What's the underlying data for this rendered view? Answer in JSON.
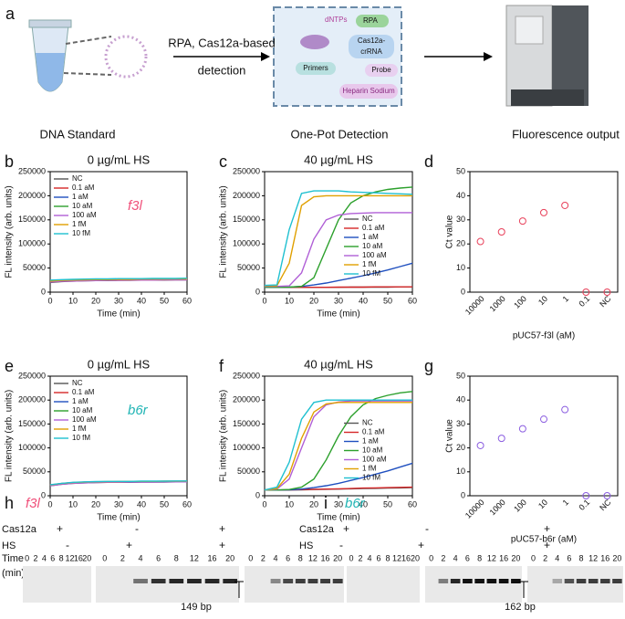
{
  "schematic": {
    "panel": "a",
    "arrow_label": [
      "RPA, Cas12a-based",
      "detection"
    ],
    "box_items": [
      "dNTPs",
      "RPA",
      "Cas12a-",
      "crRNA",
      "Primers",
      "Probe",
      "Heparin Sodium"
    ],
    "captions": [
      "DNA Standard",
      "One-Pot Detection",
      "Fluorescence output"
    ]
  },
  "chart_data": [
    {
      "type": "line",
      "panel": "b",
      "title": "0 µg/mL HS",
      "annotation": "f3l",
      "annotation_color": "#f0507a",
      "x_label": "Time (min)",
      "y_label": "FL intensity (arb. units)",
      "legend": "upper left",
      "x": [
        0,
        5,
        10,
        15,
        20,
        25,
        30,
        35,
        40,
        45,
        50,
        55,
        60
      ],
      "xlim": [
        0,
        60
      ],
      "xticks": [
        0,
        10,
        20,
        30,
        40,
        50,
        60
      ],
      "ylim": [
        0,
        250000
      ],
      "yticks": [
        0,
        50000,
        100000,
        150000,
        200000,
        250000
      ],
      "series": [
        {
          "name": "NC",
          "color": "#555555",
          "values": [
            20000,
            22000,
            23000,
            23500,
            24000,
            24000,
            24500,
            24500,
            25000,
            25000,
            25000,
            25500,
            25500
          ]
        },
        {
          "name": "0.1 aM",
          "color": "#d62728",
          "values": [
            23000,
            24000,
            24500,
            25000,
            25000,
            25500,
            25500,
            26000,
            26000,
            26000,
            26500,
            26500,
            26500
          ]
        },
        {
          "name": "1 aM",
          "color": "#1f4fbf",
          "values": [
            24000,
            25000,
            25500,
            26000,
            26000,
            26500,
            26500,
            27000,
            27000,
            27000,
            27500,
            27500,
            27500
          ]
        },
        {
          "name": "10 aM",
          "color": "#2ca02c",
          "values": [
            22000,
            23500,
            24000,
            24500,
            25000,
            25000,
            25500,
            25500,
            26000,
            26000,
            26000,
            26500,
            26500
          ]
        },
        {
          "name": "100 aM",
          "color": "#b05fd6",
          "values": [
            21000,
            22500,
            23000,
            23500,
            24000,
            24500,
            24500,
            25000,
            25000,
            25000,
            25500,
            25500,
            25500
          ]
        },
        {
          "name": "1 fM",
          "color": "#e0a000",
          "values": [
            23000,
            24500,
            25000,
            25500,
            26000,
            26000,
            26500,
            26500,
            27000,
            27000,
            27000,
            27500,
            27500
          ]
        },
        {
          "name": "10 fM",
          "color": "#1fc0d0",
          "values": [
            25000,
            26000,
            26500,
            27000,
            27500,
            27500,
            28000,
            28000,
            28000,
            28500,
            28500,
            28500,
            29000
          ]
        }
      ]
    },
    {
      "type": "line",
      "panel": "c",
      "title": "40 µg/mL HS",
      "x_label": "Time (min)",
      "y_label": "FL intensity (arb. units)",
      "legend": "center right",
      "x": [
        0,
        5,
        10,
        15,
        20,
        25,
        30,
        35,
        40,
        45,
        50,
        55,
        60
      ],
      "xlim": [
        0,
        60
      ],
      "xticks": [
        0,
        10,
        20,
        30,
        40,
        50,
        60
      ],
      "ylim": [
        0,
        250000
      ],
      "yticks": [
        0,
        50000,
        100000,
        150000,
        200000,
        250000
      ],
      "series": [
        {
          "name": "NC",
          "color": "#555555",
          "values": [
            10000,
            10000,
            10000,
            10000,
            10000,
            10000,
            10000,
            10500,
            10500,
            10500,
            10500,
            11000,
            11000
          ]
        },
        {
          "name": "0.1 aM",
          "color": "#d62728",
          "values": [
            10000,
            10000,
            10000,
            10000,
            10000,
            10000,
            10500,
            10500,
            10500,
            11000,
            11000,
            11000,
            11000
          ]
        },
        {
          "name": "1 aM",
          "color": "#1f4fbf",
          "values": [
            10000,
            10000,
            10500,
            12000,
            15000,
            19000,
            24000,
            29000,
            34000,
            40000,
            46000,
            53000,
            60000
          ]
        },
        {
          "name": "10 aM",
          "color": "#2ca02c",
          "values": [
            10000,
            10000,
            10500,
            12000,
            30000,
            90000,
            150000,
            185000,
            200000,
            208000,
            213000,
            216000,
            218000
          ]
        },
        {
          "name": "100 aM",
          "color": "#b05fd6",
          "values": [
            12000,
            12000,
            13000,
            40000,
            110000,
            150000,
            160000,
            163000,
            164000,
            165000,
            165000,
            165000,
            165000
          ]
        },
        {
          "name": "1 fM",
          "color": "#e0a000",
          "values": [
            13000,
            13000,
            60000,
            180000,
            198000,
            200000,
            200000,
            200000,
            200000,
            200000,
            200000,
            200000,
            200000
          ]
        },
        {
          "name": "10 fM",
          "color": "#1fc0d0",
          "values": [
            14000,
            15000,
            130000,
            205000,
            210000,
            210000,
            210000,
            208000,
            207000,
            206000,
            205000,
            204000,
            203000
          ]
        }
      ]
    },
    {
      "type": "scatter",
      "panel": "d",
      "x_label": "pUC57-f3l (aM)",
      "y_label": "Ct value",
      "color": "#e8405a",
      "categories": [
        "10000",
        "1000",
        "100",
        "10",
        "1",
        "0.1",
        "NC"
      ],
      "values": [
        21,
        25,
        29.5,
        33,
        36,
        0,
        0
      ],
      "ylim": [
        0,
        50
      ],
      "yticks": [
        0,
        10,
        20,
        30,
        40,
        50
      ]
    },
    {
      "type": "line",
      "panel": "e",
      "title": "0 µg/mL HS",
      "annotation": "b6r",
      "annotation_color": "#22b5b5",
      "x_label": "Time (min)",
      "y_label": "FL intensity (arb. units)",
      "legend": "upper left",
      "x": [
        0,
        5,
        10,
        15,
        20,
        25,
        30,
        35,
        40,
        45,
        50,
        55,
        60
      ],
      "xlim": [
        0,
        60
      ],
      "xticks": [
        0,
        10,
        20,
        30,
        40,
        50,
        60
      ],
      "ylim": [
        0,
        250000
      ],
      "yticks": [
        0,
        50000,
        100000,
        150000,
        200000,
        250000
      ],
      "series": [
        {
          "name": "NC",
          "color": "#555555",
          "values": [
            21000,
            24000,
            26000,
            27000,
            27500,
            28000,
            28000,
            28000,
            28500,
            28500,
            28500,
            29000,
            29000
          ]
        },
        {
          "name": "0.1 aM",
          "color": "#d62728",
          "values": [
            22000,
            25000,
            27000,
            28000,
            28500,
            28500,
            29000,
            29000,
            29000,
            29500,
            29500,
            29500,
            30000
          ]
        },
        {
          "name": "1 aM",
          "color": "#1f4fbf",
          "values": [
            22000,
            25500,
            27500,
            28500,
            29000,
            29000,
            29500,
            29500,
            29500,
            30000,
            30000,
            30000,
            30500
          ]
        },
        {
          "name": "10 aM",
          "color": "#2ca02c",
          "values": [
            21500,
            24500,
            26500,
            27500,
            28000,
            28500,
            28500,
            28500,
            29000,
            29000,
            29000,
            29500,
            29500
          ]
        },
        {
          "name": "100 aM",
          "color": "#b05fd6",
          "values": [
            21000,
            24000,
            26000,
            27000,
            27500,
            28000,
            28000,
            28500,
            28500,
            28500,
            29000,
            29000,
            29000
          ]
        },
        {
          "name": "1 fM",
          "color": "#e0a000",
          "values": [
            22500,
            25500,
            27500,
            28500,
            29000,
            29500,
            29500,
            30000,
            30000,
            30000,
            30500,
            30500,
            30500
          ]
        },
        {
          "name": "10 fM",
          "color": "#1fc0d0",
          "values": [
            23000,
            26000,
            28000,
            29000,
            29500,
            30000,
            30000,
            30000,
            30500,
            30500,
            30500,
            31000,
            31000
          ]
        }
      ]
    },
    {
      "type": "line",
      "panel": "f",
      "title": "40 µg/mL HS",
      "x_label": "Time (min)",
      "y_label": "FL intensity (arb. units)",
      "legend": "center right",
      "x": [
        0,
        5,
        10,
        15,
        20,
        25,
        30,
        35,
        40,
        45,
        50,
        55,
        60
      ],
      "xlim": [
        0,
        60
      ],
      "xticks": [
        0,
        10,
        20,
        30,
        40,
        50,
        60
      ],
      "ylim": [
        0,
        250000
      ],
      "yticks": [
        0,
        50000,
        100000,
        150000,
        200000,
        250000
      ],
      "series": [
        {
          "name": "NC",
          "color": "#555555",
          "values": [
            12000,
            12000,
            12000,
            12500,
            13000,
            13500,
            14000,
            14500,
            15000,
            15500,
            16000,
            16500,
            17000
          ]
        },
        {
          "name": "0.1 aM",
          "color": "#d62728",
          "values": [
            12000,
            12000,
            12500,
            13000,
            13500,
            14000,
            14500,
            15000,
            16000,
            16500,
            17000,
            17500,
            18000
          ]
        },
        {
          "name": "1 aM",
          "color": "#1f4fbf",
          "values": [
            12000,
            12000,
            12500,
            14000,
            17000,
            21000,
            26000,
            32000,
            38000,
            45000,
            52000,
            60000,
            68000
          ]
        },
        {
          "name": "10 aM",
          "color": "#2ca02c",
          "values": [
            12000,
            12000,
            13000,
            18000,
            35000,
            75000,
            125000,
            165000,
            190000,
            203000,
            210000,
            215000,
            218000
          ]
        },
        {
          "name": "100 aM",
          "color": "#b05fd6",
          "values": [
            12000,
            14000,
            35000,
            100000,
            165000,
            190000,
            196000,
            198000,
            198000,
            198000,
            198000,
            198000,
            198000
          ]
        },
        {
          "name": "1 fM",
          "color": "#e0a000",
          "values": [
            12000,
            15000,
            45000,
            120000,
            175000,
            192000,
            195000,
            195000,
            195000,
            195000,
            195000,
            195000,
            195000
          ]
        },
        {
          "name": "10 fM",
          "color": "#1fc0d0",
          "values": [
            12000,
            18000,
            70000,
            160000,
            195000,
            200000,
            200000,
            200000,
            200000,
            200000,
            200000,
            200000,
            200000
          ]
        }
      ]
    },
    {
      "type": "scatter",
      "panel": "g",
      "x_label": "pUC57-b6r (aM)",
      "y_label": "Ct value",
      "color": "#8a5ce0",
      "categories": [
        "10000",
        "1000",
        "100",
        "10",
        "1",
        "0.1",
        "NC"
      ],
      "values": [
        21,
        24,
        28,
        32,
        36,
        0,
        0
      ],
      "ylim": [
        0,
        50
      ],
      "yticks": [
        0,
        10,
        20,
        30,
        40,
        50
      ]
    }
  ],
  "gels": [
    {
      "panel": "h",
      "target": "f3l",
      "rows": [
        "Cas12a",
        "HS",
        "Time",
        "(min)"
      ],
      "size": "149 bp",
      "groups": [
        {
          "cas12a": "+",
          "hs": "-",
          "lanes": [
            0,
            2,
            4,
            6,
            8,
            12,
            16,
            20
          ]
        },
        {
          "cas12a": "-",
          "hs": "+",
          "lanes": [
            0,
            2,
            4,
            6,
            8,
            12,
            16,
            20
          ]
        },
        {
          "cas12a": "+",
          "hs": "+",
          "lanes": [
            0,
            2,
            4,
            6,
            8,
            12,
            16,
            20
          ]
        }
      ]
    },
    {
      "panel": "i",
      "target": "b6r",
      "rows": [
        "Cas12a",
        "HS"
      ],
      "size": "162 bp",
      "groups": [
        {
          "cas12a": "+",
          "hs": "-",
          "lanes": [
            0,
            2,
            4,
            6,
            8,
            12,
            16,
            20
          ]
        },
        {
          "cas12a": "-",
          "hs": "+",
          "lanes": [
            0,
            2,
            4,
            6,
            8,
            12,
            16,
            20
          ]
        },
        {
          "cas12a": "+",
          "hs": "+",
          "lanes": [
            0,
            2,
            4,
            6,
            8,
            12,
            16,
            20
          ]
        }
      ]
    }
  ]
}
